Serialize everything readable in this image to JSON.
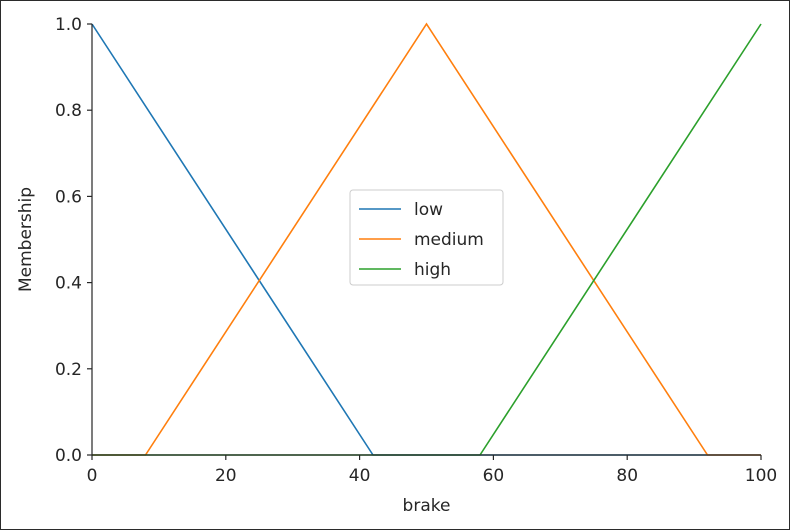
{
  "chart_data": {
    "type": "line",
    "title": "",
    "xlabel": "brake",
    "ylabel": "Membership",
    "xlim": [
      0,
      100
    ],
    "ylim": [
      0,
      1.0
    ],
    "xticks": [
      0,
      20,
      40,
      60,
      80,
      100
    ],
    "xtick_labels": [
      "0",
      "20",
      "40",
      "60",
      "80",
      "100"
    ],
    "yticks": [
      0,
      0.2,
      0.4,
      0.6,
      0.8,
      1.0
    ],
    "ytick_labels": [
      "0.0",
      "0.2",
      "0.4",
      "0.6",
      "0.8",
      "1.0"
    ],
    "grid": false,
    "legend_position": "center",
    "series": [
      {
        "name": "low",
        "color": "#1f77b4",
        "x": [
          0,
          42,
          100
        ],
        "y": [
          1.0,
          0.0,
          0.0
        ]
      },
      {
        "name": "medium",
        "color": "#ff7f0e",
        "x": [
          0,
          8,
          50,
          92,
          100
        ],
        "y": [
          0.0,
          0.0,
          1.0,
          0.0,
          0.0
        ]
      },
      {
        "name": "high",
        "color": "#2ca02c",
        "x": [
          0,
          58,
          100
        ],
        "y": [
          0.0,
          0.0,
          1.0
        ]
      }
    ]
  }
}
